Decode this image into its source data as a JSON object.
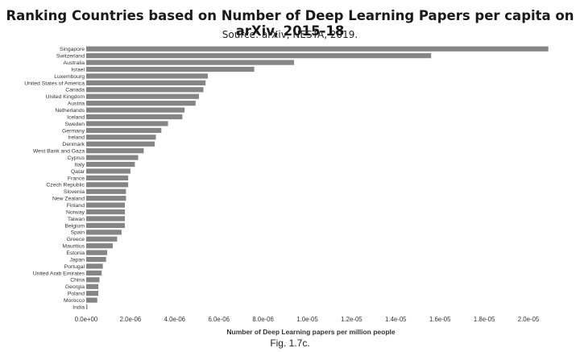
{
  "title": "Ranking Countries based on Number of Deep Learning Papers per capita on arXiv, 2015-18",
  "subtitle": "Source: arXiv, NESTA, 2019.",
  "caption": "Fig. 1.7c.",
  "colors": {
    "bar": "#858585"
  },
  "chart_data": {
    "type": "bar",
    "orientation": "horizontal",
    "xlabel": "Number of Deep Learning papers per million people",
    "ylabel": "",
    "xlim": [
      0,
      2.1e-05
    ],
    "xticks": [
      0,
      2e-06,
      4e-06,
      6e-06,
      8e-06,
      1e-05,
      1.2e-05,
      1.4e-05,
      1.6e-05,
      1.8e-05,
      2e-05
    ],
    "xtick_labels": [
      "0.0e+00",
      "2.0e-06",
      "4.0e-06",
      "6.0e-06",
      "8.0e-06",
      "1.0e-05",
      "1.2e-05",
      "1.4e-05",
      "1.6e-05",
      "1.8e-05",
      "2.0e-05"
    ],
    "grid": false,
    "categories": [
      "Singapore",
      "Switzerland",
      "Australia",
      "Israel",
      "Luxembourg",
      "United States of America",
      "Canada",
      "United Kingdom",
      "Austria",
      "Netherlands",
      "Iceland",
      "Sweden",
      "Germany",
      "Ireland",
      "Denmark",
      "West Bank and Gaza",
      "Cyprus",
      "Italy",
      "Qatar",
      "France",
      "Czech Republic",
      "Slovenia",
      "New Zealand",
      "Finland",
      "Norway",
      "Taiwan",
      "Belgium",
      "Spain",
      "Greece",
      "Mauritius",
      "Estonia",
      "Japan",
      "Portugal",
      "United Arab Emirates",
      "China",
      "Georgia",
      "Poland",
      "Morocco",
      "India"
    ],
    "values": [
      2.09e-05,
      1.56e-05,
      9.4e-06,
      7.6e-06,
      5.5e-06,
      5.4e-06,
      5.3e-06,
      5.1e-06,
      4.95e-06,
      4.45e-06,
      4.35e-06,
      3.7e-06,
      3.4e-06,
      3.15e-06,
      3.1e-06,
      2.6e-06,
      2.35e-06,
      2.2e-06,
      2e-06,
      1.9e-06,
      1.9e-06,
      1.8e-06,
      1.8e-06,
      1.75e-06,
      1.75e-06,
      1.75e-06,
      1.75e-06,
      1.6e-06,
      1.4e-06,
      1.2e-06,
      9.5e-07,
      9e-07,
      7.5e-07,
      7e-07,
      6e-07,
      5.5e-07,
      5.5e-07,
      5e-07,
      5e-08
    ]
  }
}
